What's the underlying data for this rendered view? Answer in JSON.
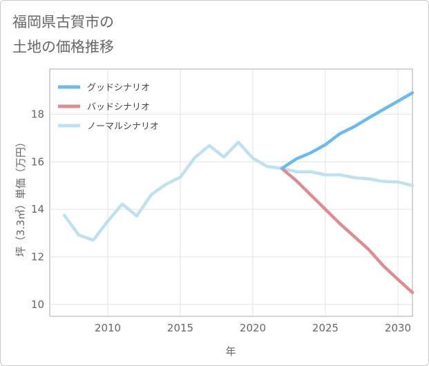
{
  "title_line1": "福岡県古賀市の",
  "title_line2": "土地の価格推移",
  "chart_data": {
    "type": "line",
    "xlabel": "年",
    "ylabel": "坪（3.3㎡）単価（万円）",
    "xlim": [
      2006,
      2031
    ],
    "ylim": [
      9.5,
      19.9
    ],
    "xticks": [
      2010,
      2015,
      2020,
      2025,
      2030
    ],
    "yticks": [
      10,
      12,
      14,
      16,
      18
    ],
    "grid": true,
    "legend_position": "top-left",
    "series": [
      {
        "name": "グッドシナリオ",
        "color": "#6db8ec",
        "x": [
          2022,
          2023,
          2024,
          2025,
          2026,
          2027,
          2028,
          2029,
          2030,
          2031
        ],
        "values": [
          15.72,
          16.12,
          16.38,
          16.72,
          17.18,
          17.48,
          17.85,
          18.2,
          18.55,
          18.9
        ]
      },
      {
        "name": "バッドシナリオ",
        "color": "#de8b93",
        "x": [
          2022,
          2023,
          2024,
          2025,
          2026,
          2027,
          2028,
          2029,
          2030,
          2031
        ],
        "values": [
          15.72,
          15.2,
          14.6,
          14.0,
          13.4,
          12.85,
          12.3,
          11.62,
          11.05,
          10.5
        ]
      },
      {
        "name": "ノーマルシナリオ",
        "color": "#bfe0ef",
        "x": [
          2007,
          2008,
          2009,
          2010,
          2011,
          2012,
          2013,
          2014,
          2015,
          2016,
          2017,
          2018,
          2019,
          2020,
          2021,
          2022,
          2023,
          2024,
          2025,
          2026,
          2027,
          2028,
          2029,
          2030,
          2031
        ],
        "values": [
          13.75,
          12.92,
          12.7,
          13.5,
          14.22,
          13.72,
          14.62,
          15.05,
          15.35,
          16.18,
          16.68,
          16.2,
          16.82,
          16.15,
          15.8,
          15.72,
          15.58,
          15.58,
          15.45,
          15.45,
          15.33,
          15.28,
          15.17,
          15.15,
          15.0
        ]
      }
    ]
  }
}
